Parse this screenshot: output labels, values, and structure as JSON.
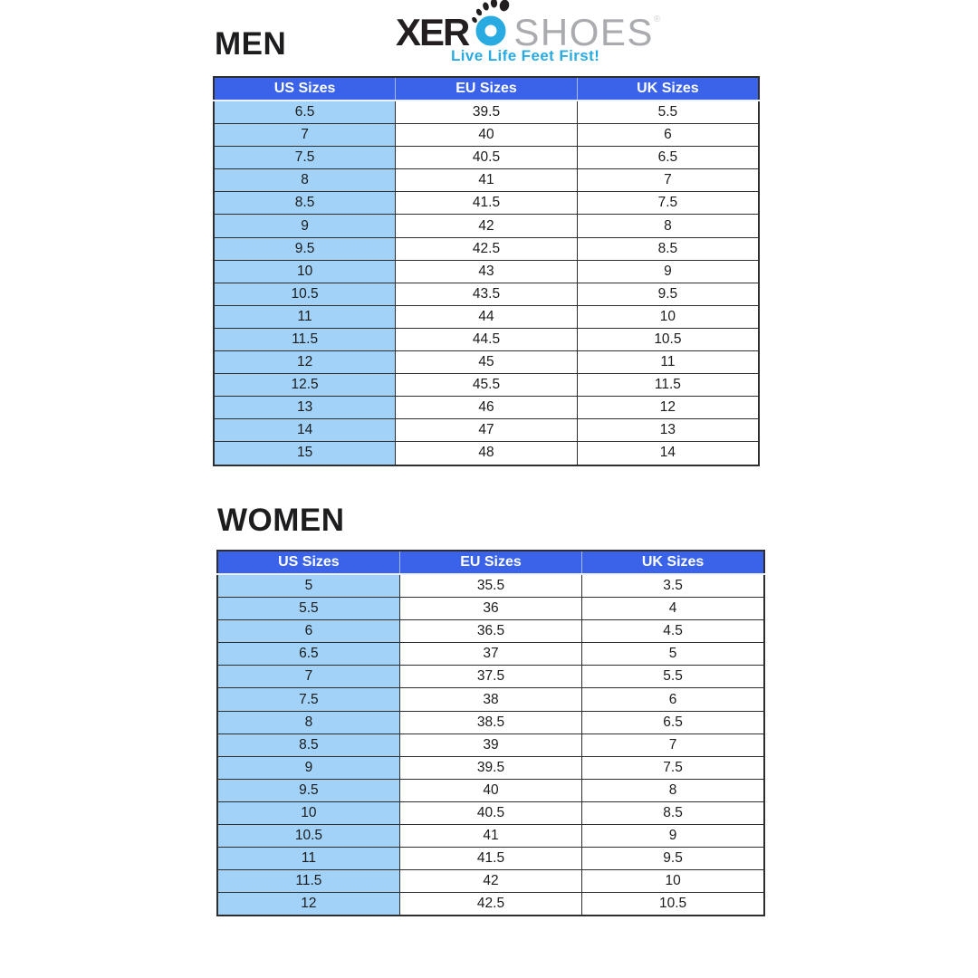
{
  "logo": {
    "brand_prefix": "XER",
    "brand_o": "O",
    "brand_suffix": "SHOES",
    "registered_mark": "®",
    "tagline": "Live Life Feet First!"
  },
  "men_section": {
    "title": "MEN"
  },
  "women_section": {
    "title": "WOMEN"
  },
  "men_table": {
    "columns": [
      "US Sizes",
      "EU Sizes",
      "UK Sizes"
    ],
    "rows": [
      [
        "6.5",
        "39.5",
        "5.5"
      ],
      [
        "7",
        "40",
        "6"
      ],
      [
        "7.5",
        "40.5",
        "6.5"
      ],
      [
        "8",
        "41",
        "7"
      ],
      [
        "8.5",
        "41.5",
        "7.5"
      ],
      [
        "9",
        "42",
        "8"
      ],
      [
        "9.5",
        "42.5",
        "8.5"
      ],
      [
        "10",
        "43",
        "9"
      ],
      [
        "10.5",
        "43.5",
        "9.5"
      ],
      [
        "11",
        "44",
        "10"
      ],
      [
        "11.5",
        "44.5",
        "10.5"
      ],
      [
        "12",
        "45",
        "11"
      ],
      [
        "12.5",
        "45.5",
        "11.5"
      ],
      [
        "13",
        "46",
        "12"
      ],
      [
        "14",
        "47",
        "13"
      ],
      [
        "15",
        "48",
        "14"
      ]
    ]
  },
  "women_table": {
    "columns": [
      "US Sizes",
      "EU Sizes",
      "UK Sizes"
    ],
    "rows": [
      [
        "5",
        "35.5",
        "3.5"
      ],
      [
        "5.5",
        "36",
        "4"
      ],
      [
        "6",
        "36.5",
        "4.5"
      ],
      [
        "6.5",
        "37",
        "5"
      ],
      [
        "7",
        "37.5",
        "5.5"
      ],
      [
        "7.5",
        "38",
        "6"
      ],
      [
        "8",
        "38.5",
        "6.5"
      ],
      [
        "8.5",
        "39",
        "7"
      ],
      [
        "9",
        "39.5",
        "7.5"
      ],
      [
        "9.5",
        "40",
        "8"
      ],
      [
        "10",
        "40.5",
        "8.5"
      ],
      [
        "10.5",
        "41",
        "9"
      ],
      [
        "11",
        "41.5",
        "9.5"
      ],
      [
        "11.5",
        "42",
        "10"
      ],
      [
        "12",
        "42.5",
        "10.5"
      ]
    ]
  },
  "colors": {
    "table_header_bg": "#3A63EA",
    "us_column_bg": "#A2D2F7",
    "table_border": "#2E2E2E",
    "brand_black": "#231F20",
    "brand_blue": "#29ABE2",
    "brand_gray": "#A9ABAE",
    "tagline_blue": "#29ABE2"
  }
}
